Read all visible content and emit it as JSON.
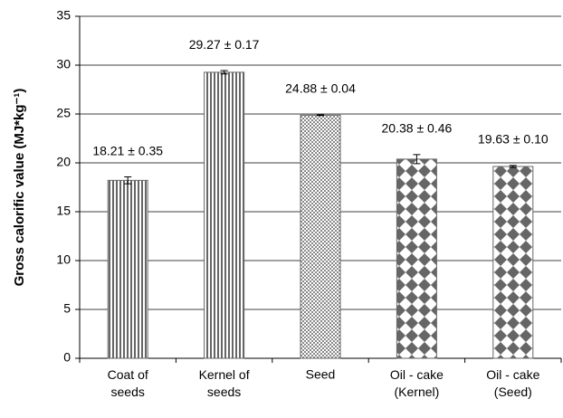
{
  "chart_data": {
    "type": "bar",
    "y_label": "Gross calorific value (MJ*kg⁻¹)",
    "categories": [
      "Coat of\nseeds",
      "Kernel of\nseeds",
      "Seed",
      "Oil - cake\n(Kernel)",
      "Oil - cake\n(Seed)"
    ],
    "values": [
      18.21,
      29.27,
      24.88,
      20.38,
      19.63
    ],
    "errors": [
      0.35,
      0.17,
      0.04,
      0.46,
      0.1
    ],
    "value_labels": [
      "18.21 ± 0.35",
      "29.27 ± 0.17",
      "24.88 ± 0.04",
      "20.38 ± 0.46",
      "19.63 ± 0.10"
    ],
    "patterns": [
      "vertical-stripes",
      "vertical-stripes",
      "checker",
      "diamonds",
      "diamonds"
    ],
    "color": "#666666",
    "ylim": [
      0,
      35
    ],
    "yticks": [
      0,
      5,
      10,
      15,
      20,
      25,
      30,
      35
    ],
    "grid": true
  }
}
